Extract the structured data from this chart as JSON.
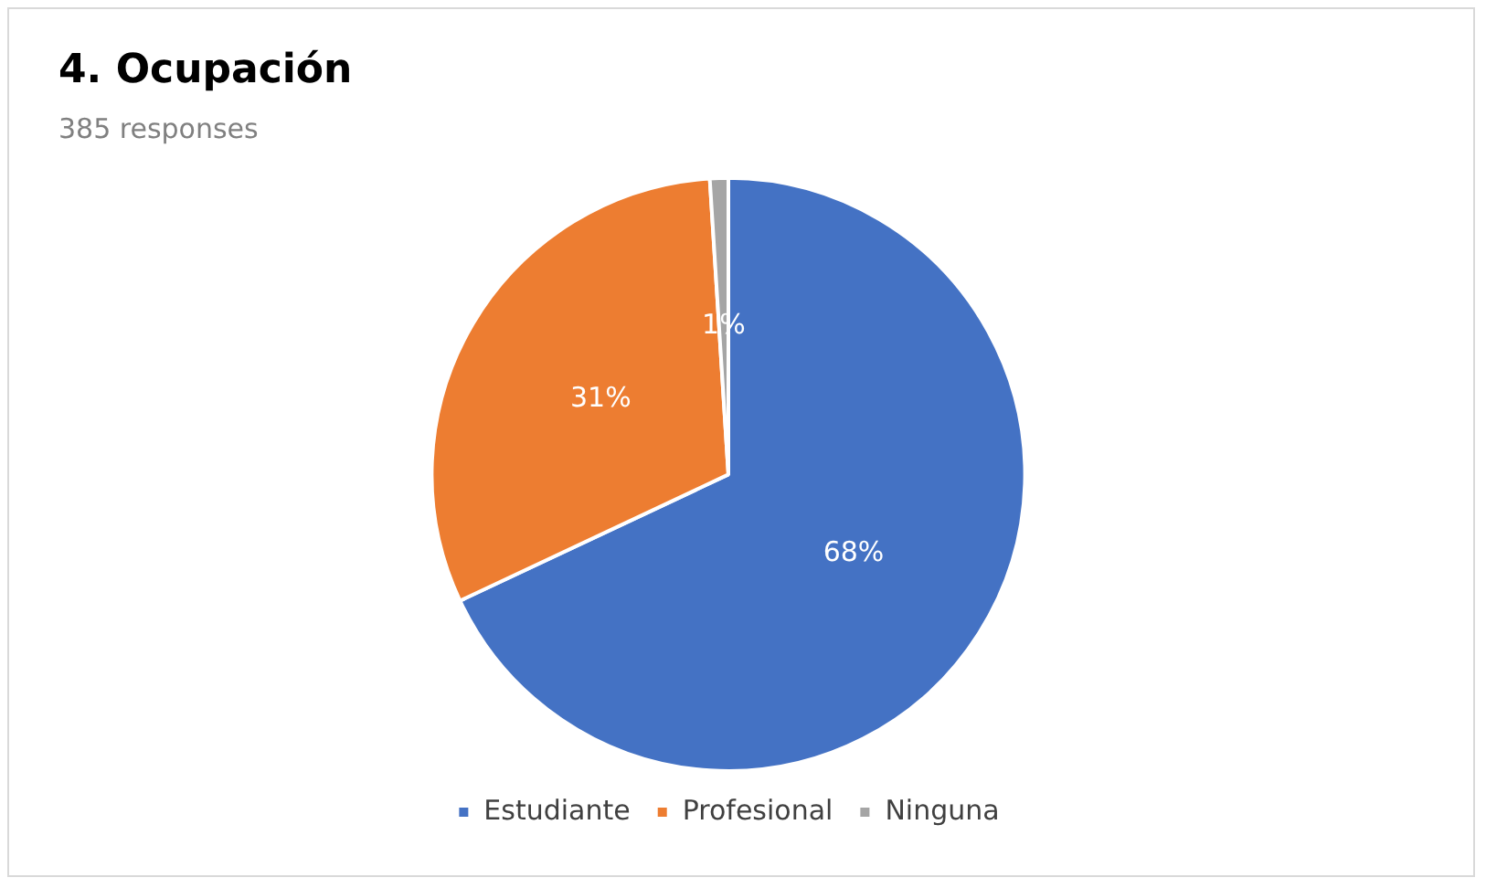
{
  "chart_data": {
    "type": "pie",
    "title": "4. Ocupación",
    "subtitle": "385 responses",
    "categories": [
      "Estudiante",
      "Profesional",
      "Ninguna"
    ],
    "values": [
      68,
      31,
      1
    ],
    "colors": [
      "#4472c4",
      "#ed7d31",
      "#a5a5a5"
    ],
    "value_labels": [
      "68%",
      "31%",
      "1%"
    ],
    "legend": "bottom"
  }
}
